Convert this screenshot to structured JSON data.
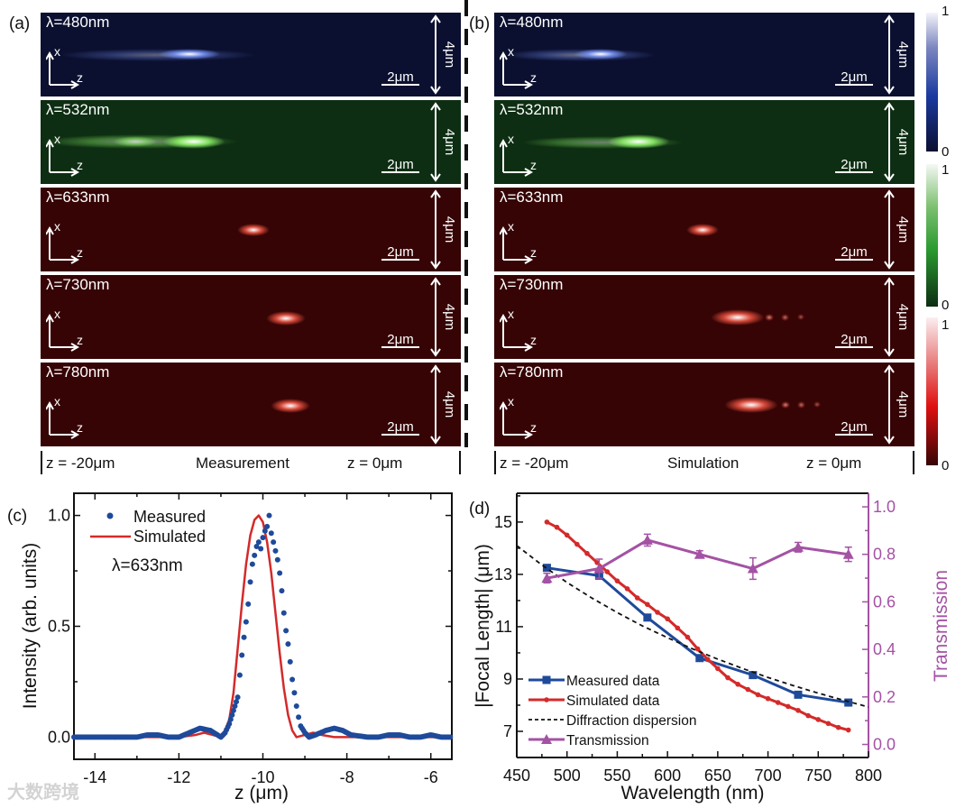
{
  "panel_a": {
    "label": "(a)",
    "rows": [
      {
        "title": "λ=480nm",
        "axis_x": "x",
        "axis_z": "z",
        "scale": "2μm",
        "height": "4μm"
      },
      {
        "title": "λ=532nm",
        "axis_x": "x",
        "axis_z": "z",
        "scale": "2μm",
        "height": "4μm"
      },
      {
        "title": "λ=633nm",
        "axis_x": "x",
        "axis_z": "z",
        "scale": "2μm",
        "height": "4μm"
      },
      {
        "title": "λ=730nm",
        "axis_x": "x",
        "axis_z": "z",
        "scale": "2μm",
        "height": "4μm"
      },
      {
        "title": "λ=780nm",
        "axis_x": "x",
        "axis_z": "z",
        "scale": "2μm",
        "height": "4μm"
      }
    ],
    "z_left": "z = -20μm",
    "caption": "Measurement",
    "z_right": "z = 0μm"
  },
  "panel_b": {
    "label": "(b)",
    "rows": [
      {
        "title": "λ=480nm",
        "axis_x": "x",
        "axis_z": "z",
        "scale": "2μm",
        "height": "4μm"
      },
      {
        "title": "λ=532nm",
        "axis_x": "x",
        "axis_z": "z",
        "scale": "2μm",
        "height": "4μm"
      },
      {
        "title": "λ=633nm",
        "axis_x": "x",
        "axis_z": "z",
        "scale": "2μm",
        "height": "4μm"
      },
      {
        "title": "λ=730nm",
        "axis_x": "x",
        "axis_z": "z",
        "scale": "2μm",
        "height": "4μm"
      },
      {
        "title": "λ=780nm",
        "axis_x": "x",
        "axis_z": "z",
        "scale": "2μm",
        "height": "4μm"
      }
    ],
    "z_left": "z = -20μm",
    "caption": "Simulation",
    "z_right": "z = 0μm"
  },
  "colorbars": [
    {
      "max": "1",
      "min": "0",
      "color": "#1a3aa0"
    },
    {
      "max": "1",
      "min": "0",
      "color": "#2a9a30"
    },
    {
      "max": "1",
      "min": "0",
      "color": "#e01010"
    }
  ],
  "watermark": "大数跨境",
  "chart_data": [
    {
      "type": "scatter",
      "panel_label": "(c)",
      "xlabel": "z (μm)",
      "ylabel": "Intensity (arb. units)",
      "xlim": [
        -14.5,
        -5.5
      ],
      "ylim": [
        -0.1,
        1.1
      ],
      "xticks": [
        -14,
        -12,
        -10,
        -8,
        -6
      ],
      "yticks": [
        0.0,
        0.5,
        1.0
      ],
      "annotation": "λ=633nm",
      "legend_position": "top-left",
      "series": [
        {
          "name": "Measured",
          "style": "dots",
          "color": "#1f4a9a",
          "x": [
            -14.5,
            -14.25,
            -14,
            -13.75,
            -13.5,
            -13.25,
            -13,
            -12.75,
            -12.5,
            -12.25,
            -12,
            -11.75,
            -11.5,
            -11.25,
            -11.0,
            -10.9,
            -10.8,
            -10.7,
            -10.6,
            -10.55,
            -10.5,
            -10.45,
            -10.4,
            -10.35,
            -10.3,
            -10.25,
            -10.2,
            -10.15,
            -10.1,
            -10.05,
            -10.0,
            -9.95,
            -9.9,
            -9.85,
            -9.8,
            -9.75,
            -9.7,
            -9.65,
            -9.6,
            -9.55,
            -9.5,
            -9.45,
            -9.4,
            -9.35,
            -9.3,
            -9.25,
            -9.2,
            -9.15,
            -9.1,
            -9.0,
            -8.9,
            -8.75,
            -8.5,
            -8.3,
            -8.1,
            -7.9,
            -7.5,
            -7.25,
            -7,
            -6.75,
            -6.5,
            -6.25,
            -6,
            -5.75,
            -5.5
          ],
          "y": [
            0,
            0,
            0,
            0,
            0,
            0,
            0,
            0.01,
            0.01,
            0,
            0,
            0.02,
            0.04,
            0.03,
            0.0,
            0.02,
            0.06,
            0.12,
            0.18,
            0.28,
            0.37,
            0.45,
            0.52,
            0.6,
            0.7,
            0.78,
            0.82,
            0.86,
            0.88,
            0.85,
            0.9,
            0.93,
            0.95,
            1.0,
            0.92,
            0.88,
            0.84,
            0.8,
            0.74,
            0.66,
            0.56,
            0.48,
            0.42,
            0.34,
            0.26,
            0.2,
            0.14,
            0.09,
            0.05,
            0.02,
            0.0,
            0.01,
            0.03,
            0.04,
            0.03,
            0.01,
            0.0,
            0.0,
            0.01,
            0.01,
            0.0,
            0.0,
            0.01,
            0.0,
            0.0
          ]
        },
        {
          "name": "Simulated",
          "style": "line",
          "color": "#d42a2a",
          "x": [
            -14.5,
            -12,
            -11.6,
            -11.4,
            -11.2,
            -11.0,
            -10.9,
            -10.8,
            -10.7,
            -10.6,
            -10.5,
            -10.4,
            -10.3,
            -10.2,
            -10.1,
            -10.0,
            -9.9,
            -9.8,
            -9.7,
            -9.6,
            -9.5,
            -9.4,
            -9.3,
            -9.2,
            -9.0,
            -8.8,
            -8.6,
            -8.3,
            -5.5
          ],
          "y": [
            0,
            0,
            0.01,
            0.02,
            0.01,
            0.0,
            0.03,
            0.08,
            0.2,
            0.4,
            0.6,
            0.78,
            0.91,
            0.98,
            1.0,
            0.97,
            0.88,
            0.74,
            0.56,
            0.38,
            0.22,
            0.1,
            0.03,
            0.0,
            0.01,
            0.02,
            0.01,
            0.0,
            0.0
          ]
        }
      ]
    },
    {
      "type": "line",
      "panel_label": "(d)",
      "xlabel": "Wavelength (nm)",
      "ylabel": "|Focal Length| (μm)",
      "y2label": "Transmission",
      "xlim": [
        450,
        800
      ],
      "ylim": [
        6,
        16.1
      ],
      "y2lim": [
        -0.055,
        1.057
      ],
      "xticks": [
        450,
        500,
        550,
        600,
        650,
        700,
        750,
        800
      ],
      "yticks": [
        7,
        9,
        11,
        13,
        15
      ],
      "y2ticks": [
        "0.0",
        "0.2",
        "0.4",
        "0.6",
        "0.8",
        "1.0"
      ],
      "legend_position": "bottom-left",
      "series": [
        {
          "name": "Measured data",
          "axis": "left",
          "color": "#1f4a9a",
          "marker": "square",
          "x": [
            480,
            532,
            580,
            632,
            685,
            730,
            780
          ],
          "y": [
            13.25,
            12.95,
            11.35,
            9.8,
            9.15,
            8.4,
            8.1
          ]
        },
        {
          "name": "Simulated data",
          "axis": "left",
          "color": "#d42a2a",
          "marker": "dot",
          "x": [
            480,
            490,
            500,
            510,
            520,
            530,
            540,
            550,
            560,
            570,
            580,
            590,
            600,
            610,
            620,
            630,
            640,
            650,
            660,
            670,
            680,
            690,
            700,
            710,
            720,
            730,
            740,
            750,
            760,
            770,
            780
          ],
          "y": [
            15.0,
            14.8,
            14.5,
            14.15,
            13.8,
            13.45,
            13.1,
            12.75,
            12.45,
            12.1,
            11.85,
            11.55,
            11.3,
            10.95,
            10.6,
            10.15,
            9.75,
            9.4,
            9.05,
            8.8,
            8.6,
            8.4,
            8.25,
            8.1,
            7.95,
            7.8,
            7.6,
            7.45,
            7.3,
            7.15,
            7.05
          ]
        },
        {
          "name": "Diffraction dispersion",
          "axis": "left",
          "color": "#111111",
          "marker": "none",
          "dash": true,
          "x": [
            450,
            475,
            500,
            525,
            550,
            575,
            600,
            625,
            650,
            675,
            700,
            725,
            750,
            775,
            800
          ],
          "y": [
            14.1,
            13.36,
            12.69,
            12.09,
            11.54,
            11.03,
            10.58,
            10.15,
            9.76,
            9.4,
            9.06,
            8.75,
            8.46,
            8.19,
            7.93
          ]
        },
        {
          "name": "Transmission",
          "axis": "right",
          "color": "#a452a4",
          "marker": "triangle",
          "x": [
            480,
            532,
            580,
            632,
            685,
            730,
            780
          ],
          "y": [
            0.7,
            0.74,
            0.86,
            0.8,
            0.74,
            0.83,
            0.8
          ],
          "err": [
            0.02,
            0.04,
            0.025,
            0.015,
            0.045,
            0.02,
            0.03
          ]
        }
      ]
    }
  ]
}
